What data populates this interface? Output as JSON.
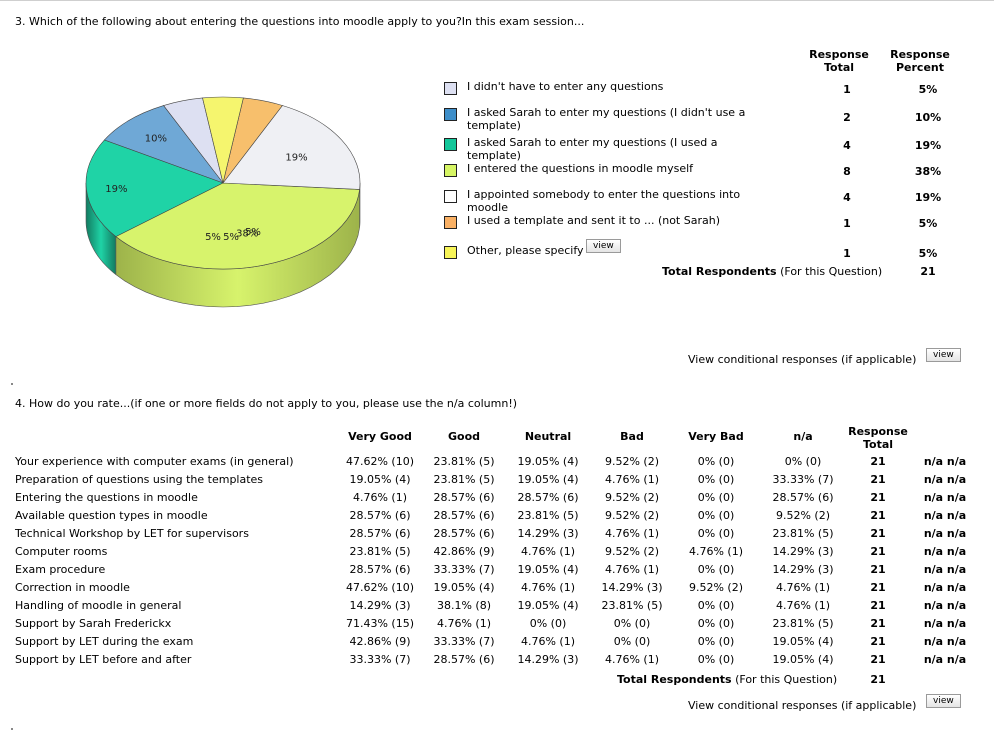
{
  "q3": {
    "title": "3. Which of the following about entering the questions into moodle apply to you?In this exam session...",
    "header_total": [
      "Response",
      "Total"
    ],
    "header_percent": [
      "Response",
      "Percent"
    ],
    "total_respondents_label": "Total Respondents",
    "total_respondents_suffix": "(For this Question)",
    "total_respondents": "21",
    "view_label": "view",
    "conditional_label": "View conditional responses (if applicable)"
  },
  "chart_data": {
    "type": "pie",
    "title": "",
    "slice_labels": [
      "5%",
      "10%",
      "19%",
      "38%",
      "19%",
      "5%",
      "5%"
    ],
    "slices": [
      {
        "name": "I didn't have to enter any questions",
        "value": 1,
        "percent": "5%",
        "color": "#dde0f2",
        "side": "#a9acc8"
      },
      {
        "name": "I asked Sarah to enter my questions (I didn't use a template)",
        "value": 2,
        "percent": "10%",
        "color": "#6fa8d6",
        "side": "#3e6f9a"
      },
      {
        "name": "I asked Sarah to enter my questions (I used a template)",
        "value": 4,
        "percent": "19%",
        "color": "#1fd3a6",
        "side": "#127a60"
      },
      {
        "name": "I entered the questions in moodle myself",
        "value": 8,
        "percent": "38%",
        "color": "#d7f36c",
        "side": "#9db34a"
      },
      {
        "name": "I appointed somebody to enter the questions into moodle",
        "value": 4,
        "percent": "19%",
        "color": "#eff0f4",
        "side": "#a7a8ae"
      },
      {
        "name": "I used a template and sent it to ... (not Sarah)",
        "value": 1,
        "percent": "5%",
        "color": "#f7bf6c",
        "side": "#b5853e"
      },
      {
        "name": "Other, please specify",
        "value": 1,
        "percent": "5%",
        "color": "#f5f56e",
        "side": "#b3b34a"
      }
    ]
  },
  "legend": [
    {
      "label": "I didn't have to enter any questions",
      "color": "#dde0f2",
      "total": "1",
      "percent": "5%"
    },
    {
      "label": "I asked Sarah to enter my questions (I didn't use a template)",
      "color": "#3d8ec9",
      "total": "2",
      "percent": "10%"
    },
    {
      "label": "I asked Sarah to enter my questions (I used a template)",
      "color": "#13c79a",
      "total": "4",
      "percent": "19%"
    },
    {
      "label": "I entered the questions in moodle myself",
      "color": "#d6f564",
      "total": "8",
      "percent": "38%"
    },
    {
      "label": "I appointed somebody to enter the questions into moodle",
      "color": "#ffffff",
      "total": "4",
      "percent": "19%"
    },
    {
      "label": "I used a template and sent it to ... (not Sarah)",
      "color": "#f9b064",
      "total": "1",
      "percent": "5%"
    },
    {
      "label": "Other, please specify",
      "color": "#f7f458",
      "total": "1",
      "percent": "5%"
    }
  ],
  "q4": {
    "title": "4. How do you rate...(if one or more fields do not apply to you, please use the n/a column!)",
    "columns": [
      "Very Good",
      "Good",
      "Neutral",
      "Bad",
      "Very Bad",
      "n/a"
    ],
    "header_total": [
      "Response",
      "Total"
    ],
    "rows": [
      {
        "label": "Your experience with computer exams (in general)",
        "cells": [
          "47.62% (10)",
          "23.81% (5)",
          "19.05% (4)",
          "9.52% (2)",
          "0% (0)",
          "0% (0)"
        ],
        "total": "21",
        "na": "n/a n/a"
      },
      {
        "label": "Preparation of questions using the templates",
        "cells": [
          "19.05% (4)",
          "23.81% (5)",
          "19.05% (4)",
          "4.76% (1)",
          "0% (0)",
          "33.33% (7)"
        ],
        "total": "21",
        "na": "n/a n/a"
      },
      {
        "label": "Entering the questions in moodle",
        "cells": [
          "4.76% (1)",
          "28.57% (6)",
          "28.57% (6)",
          "9.52% (2)",
          "0% (0)",
          "28.57% (6)"
        ],
        "total": "21",
        "na": "n/a n/a"
      },
      {
        "label": "Available question types in moodle",
        "cells": [
          "28.57% (6)",
          "28.57% (6)",
          "23.81% (5)",
          "9.52% (2)",
          "0% (0)",
          "9.52% (2)"
        ],
        "total": "21",
        "na": "n/a n/a"
      },
      {
        "label": "Technical Workshop by LET for supervisors",
        "cells": [
          "28.57% (6)",
          "28.57% (6)",
          "14.29% (3)",
          "4.76% (1)",
          "0% (0)",
          "23.81% (5)"
        ],
        "total": "21",
        "na": "n/a n/a"
      },
      {
        "label": "Computer rooms",
        "cells": [
          "23.81% (5)",
          "42.86% (9)",
          "4.76% (1)",
          "9.52% (2)",
          "4.76% (1)",
          "14.29% (3)"
        ],
        "total": "21",
        "na": "n/a n/a"
      },
      {
        "label": "Exam procedure",
        "cells": [
          "28.57% (6)",
          "33.33% (7)",
          "19.05% (4)",
          "4.76% (1)",
          "0% (0)",
          "14.29% (3)"
        ],
        "total": "21",
        "na": "n/a n/a"
      },
      {
        "label": "Correction in moodle",
        "cells": [
          "47.62% (10)",
          "19.05% (4)",
          "4.76% (1)",
          "14.29% (3)",
          "9.52% (2)",
          "4.76% (1)"
        ],
        "total": "21",
        "na": "n/a n/a"
      },
      {
        "label": "Handling of moodle in general",
        "cells": [
          "14.29% (3)",
          "38.1% (8)",
          "19.05% (4)",
          "23.81% (5)",
          "0% (0)",
          "4.76% (1)"
        ],
        "total": "21",
        "na": "n/a n/a"
      },
      {
        "label": "Support by Sarah Frederickx",
        "cells": [
          "71.43% (15)",
          "4.76% (1)",
          "0% (0)",
          "0% (0)",
          "0% (0)",
          "23.81% (5)"
        ],
        "total": "21",
        "na": "n/a n/a"
      },
      {
        "label": "Support by LET during the exam",
        "cells": [
          "42.86% (9)",
          "33.33% (7)",
          "4.76% (1)",
          "0% (0)",
          "0% (0)",
          "19.05% (4)"
        ],
        "total": "21",
        "na": "n/a n/a"
      },
      {
        "label": "Support by LET before and after",
        "cells": [
          "33.33% (7)",
          "28.57% (6)",
          "14.29% (3)",
          "4.76% (1)",
          "0% (0)",
          "19.05% (4)"
        ],
        "total": "21",
        "na": "n/a n/a"
      }
    ],
    "total_respondents_label": "Total Respondents",
    "total_respondents_suffix": "(For this Question)",
    "total_respondents": "21",
    "view_label": "view",
    "conditional_label": "View conditional responses (if applicable)"
  }
}
